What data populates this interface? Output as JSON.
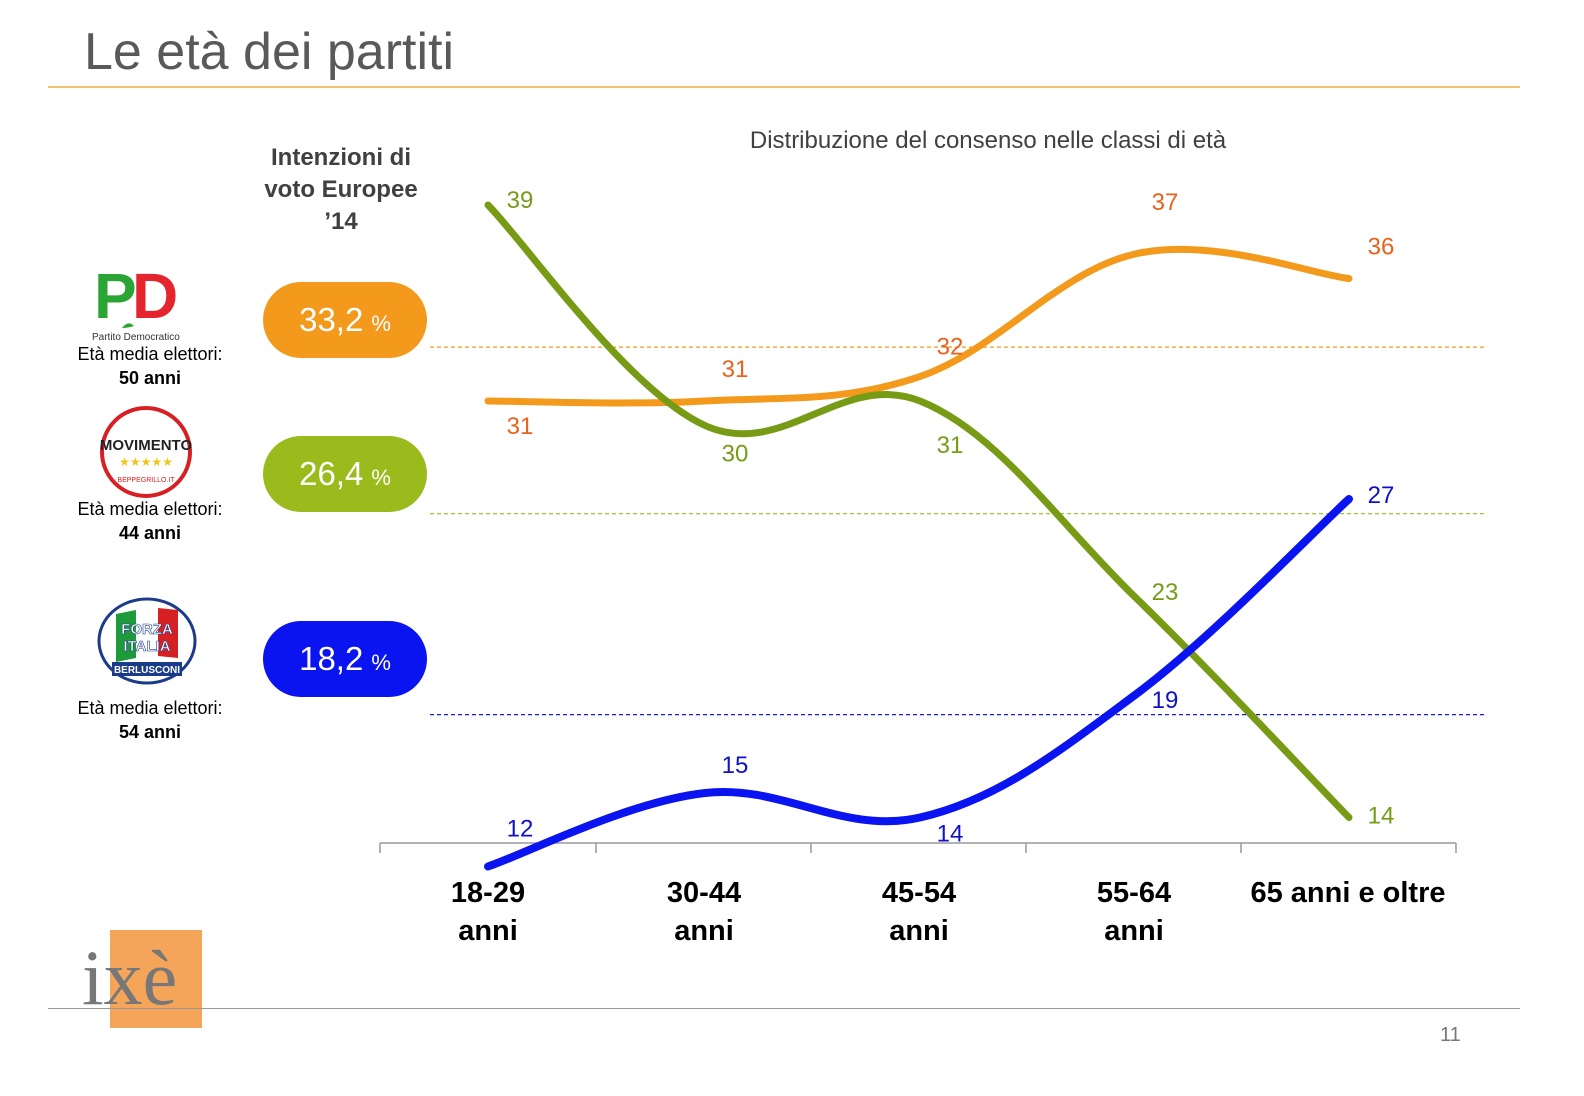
{
  "page": {
    "title": "Le età dei partiti",
    "page_number": "11"
  },
  "left_panel": {
    "header": "Intenzioni di voto Europee ’14",
    "parties": [
      {
        "logo": "pd-logo",
        "logo_text": "Partito Democratico",
        "age_label": "Età media elettori:",
        "age_value": "50 anni",
        "vote_value": "33,2",
        "vote_unit": "%",
        "color": "#f39a1c"
      },
      {
        "logo": "m5s-logo",
        "logo_text": "MoVimento beppegrillo.it",
        "age_label": "Età media elettori:",
        "age_value": "44 anni",
        "vote_value": "26,4",
        "vote_unit": "%",
        "color": "#9bbb1c"
      },
      {
        "logo": "forza-italia-logo",
        "logo_text": "Forza Italia Berlusconi",
        "age_label": "Età media elettori:",
        "age_value": "54 anni",
        "vote_value": "18,2",
        "vote_unit": "%",
        "color": "#0a14f0"
      }
    ]
  },
  "chart_data": {
    "type": "line",
    "title": "Distribuzione del consenso nelle classi di età",
    "categories": [
      "18-29 anni",
      "30-44 anni",
      "45-54 anni",
      "55-64 anni",
      "65 anni e oltre"
    ],
    "series": [
      {
        "values": [
          31,
          31,
          32,
          37,
          36
        ],
        "color": "#f39a1c",
        "label_color": "#e8621c",
        "reference": 33.2,
        "ref_color": "#f39a1c"
      },
      {
        "values": [
          39,
          30,
          31,
          23,
          14
        ],
        "color": "#779b15",
        "label_color": "#779b15",
        "reference": 26.4,
        "ref_color": "#9bbb1c"
      },
      {
        "values": [
          12,
          15,
          14,
          19,
          27
        ],
        "color": "#0a14f0",
        "label_color": "#1010c8",
        "reference": 18.2,
        "ref_color": "#1a1ae0"
      }
    ],
    "grid": false,
    "legend": "none"
  },
  "branding": {
    "logo_text": "ixè",
    "logo_color": "#f4a55a"
  }
}
